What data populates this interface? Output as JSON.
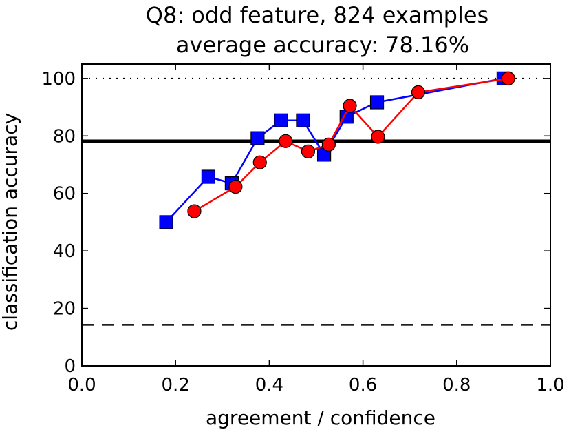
{
  "chart_data": {
    "type": "line",
    "title": "Q8: odd feature, 824 examples",
    "subtitle": "average accuracy: 78.16%",
    "xlabel": "agreement / confidence",
    "ylabel": "classification accuracy",
    "xlim": [
      0.0,
      1.0
    ],
    "ylim": [
      0,
      105
    ],
    "xticks": [
      0.0,
      0.2,
      0.4,
      0.6,
      0.8,
      1.0
    ],
    "xtick_labels": [
      "0.0",
      "0.2",
      "0.4",
      "0.6",
      "0.8",
      "1.0"
    ],
    "yticks": [
      0,
      20,
      40,
      60,
      80,
      100
    ],
    "ytick_labels": [
      "0",
      "20",
      "40",
      "60",
      "80",
      "100"
    ],
    "grid": false,
    "series": [
      {
        "color": "#0000ff",
        "marker": "square",
        "points": [
          {
            "x": 0.18,
            "y": 50.0
          },
          {
            "x": 0.27,
            "y": 65.8
          },
          {
            "x": 0.32,
            "y": 63.5
          },
          {
            "x": 0.375,
            "y": 79.2
          },
          {
            "x": 0.425,
            "y": 85.4
          },
          {
            "x": 0.472,
            "y": 85.4
          },
          {
            "x": 0.517,
            "y": 73.5
          },
          {
            "x": 0.565,
            "y": 86.7
          },
          {
            "x": 0.63,
            "y": 91.7
          },
          {
            "x": 0.9,
            "y": 100.0
          }
        ]
      },
      {
        "color": "#ff0000",
        "marker": "circle",
        "points": [
          {
            "x": 0.24,
            "y": 53.8
          },
          {
            "x": 0.328,
            "y": 62.3
          },
          {
            "x": 0.38,
            "y": 70.8
          },
          {
            "x": 0.435,
            "y": 78.2
          },
          {
            "x": 0.483,
            "y": 74.6
          },
          {
            "x": 0.527,
            "y": 77.0
          },
          {
            "x": 0.572,
            "y": 90.5
          },
          {
            "x": 0.632,
            "y": 79.7
          },
          {
            "x": 0.718,
            "y": 95.2
          },
          {
            "x": 0.91,
            "y": 100.0
          }
        ]
      }
    ],
    "reference_lines": [
      {
        "y": 78.16,
        "style": "solid",
        "color": "#000000"
      },
      {
        "y": 100,
        "style": "dotted",
        "color": "#000000"
      },
      {
        "y": 14.3,
        "style": "dashed",
        "color": "#000000"
      }
    ]
  }
}
